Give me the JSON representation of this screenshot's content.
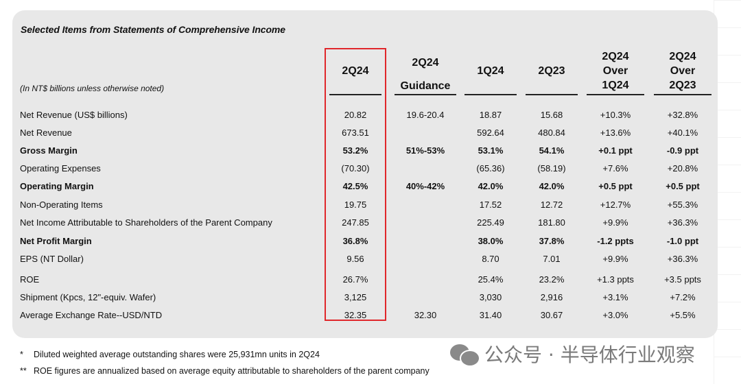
{
  "title": "Selected Items from Statements of Comprehensive Income",
  "units_note": "(In NT$ billions unless otherwise noted)",
  "columns": [
    {
      "lines": [
        "2Q24"
      ]
    },
    {
      "lines": [
        "2Q24",
        "Guidance"
      ]
    },
    {
      "lines": [
        "1Q24"
      ]
    },
    {
      "lines": [
        "2Q23"
      ]
    },
    {
      "lines": [
        "2Q24",
        "Over",
        "1Q24"
      ]
    },
    {
      "lines": [
        "2Q24",
        "Over",
        "2Q23"
      ]
    }
  ],
  "rows": [
    {
      "label": "Net Revenue (US$ billions)",
      "bold": false,
      "values": [
        "20.82",
        "19.6-20.4",
        "18.87",
        "15.68",
        "+10.3%",
        "+32.8%"
      ]
    },
    {
      "label": "Net Revenue",
      "bold": false,
      "values": [
        "673.51",
        "",
        "592.64",
        "480.84",
        "+13.6%",
        "+40.1%"
      ]
    },
    {
      "label": "Gross Margin",
      "bold": true,
      "values": [
        "53.2%",
        "51%-53%",
        "53.1%",
        "54.1%",
        "+0.1 ppt",
        "-0.9 ppt"
      ]
    },
    {
      "label": "Operating Expenses",
      "bold": false,
      "values": [
        "(70.30)",
        "",
        "(65.36)",
        "(58.19)",
        "+7.6%",
        "+20.8%"
      ]
    },
    {
      "label": "Operating Margin",
      "bold": true,
      "values": [
        "42.5%",
        "40%-42%",
        "42.0%",
        "42.0%",
        "+0.5 ppt",
        "+0.5 ppt"
      ]
    },
    {
      "label": "Non-Operating Items",
      "bold": false,
      "values": [
        "19.75",
        "",
        "17.52",
        "12.72",
        "+12.7%",
        "+55.3%"
      ]
    },
    {
      "label": "Net Income Attributable to Shareholders of the Parent Company",
      "bold": false,
      "values": [
        "247.85",
        "",
        "225.49",
        "181.80",
        "+9.9%",
        "+36.3%"
      ]
    },
    {
      "label": "Net Profit Margin",
      "bold": true,
      "values": [
        "36.8%",
        "",
        "38.0%",
        "37.8%",
        "-1.2 ppts",
        "-1.0 ppt"
      ]
    },
    {
      "label": "EPS (NT Dollar)",
      "bold": false,
      "values": [
        "9.56",
        "",
        "8.70",
        "7.01",
        "+9.9%",
        "+36.3%"
      ]
    },
    {
      "label": "ROE",
      "bold": false,
      "values": [
        "26.7%",
        "",
        "25.4%",
        "23.2%",
        "+1.3 ppts",
        "+3.5 ppts"
      ]
    },
    {
      "label": "Shipment (Kpcs, 12\"-equiv. Wafer)",
      "bold": false,
      "values": [
        "3,125",
        "",
        "3,030",
        "2,916",
        "+3.1%",
        "+7.2%"
      ]
    },
    {
      "label": "Average Exchange Rate--USD/NTD",
      "bold": false,
      "values": [
        "32.35",
        "32.30",
        "31.40",
        "30.67",
        "+3.0%",
        "+5.5%"
      ]
    }
  ],
  "footnotes": [
    {
      "marker": "*",
      "text": "Diluted weighted average outstanding shares were 25,931mn units in 2Q24"
    },
    {
      "marker": "**",
      "text": "ROE figures are annualized based on average equity attributable to shareholders of the parent company"
    }
  ],
  "watermark": "公众号 · 半导体行业观察",
  "colors": {
    "highlight": "#e0262a",
    "panel": "#e8e8e8"
  }
}
